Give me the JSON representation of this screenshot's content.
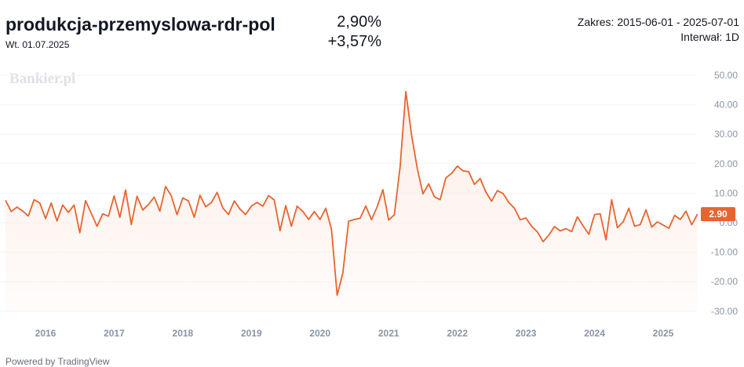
{
  "header": {
    "title": "produkcja-przemyslowa-rdr-pol",
    "date": "Wt. 01.07.2025",
    "value": "2,90%",
    "change": "+3,57%",
    "range": "Zakres: 2015-06-01 - 2025-07-01",
    "interval": "Interwał: 1D"
  },
  "watermark": "Bankier.pl",
  "footer": "Powered by TradingView",
  "colors": {
    "line": "#e8642f",
    "fill": "#fdebe3",
    "axis_text": "#8a93a6",
    "grid": "#f0f3fa",
    "badge": "#e8642f"
  },
  "chart_data": {
    "type": "area",
    "title": "",
    "xlabel": "",
    "ylabel": "",
    "ylim": [
      -33,
      52
    ],
    "xlim": [
      "2015-06-01",
      "2025-07-01"
    ],
    "y_ticks": [
      "50.00",
      "40.00",
      "30.00",
      "20.00",
      "10.00",
      "0.00",
      "-10.00",
      "-20.00",
      "-30.00"
    ],
    "y_tick_values": [
      50,
      40,
      30,
      20,
      10,
      0,
      -10,
      -20,
      -30
    ],
    "x_ticks": [
      "2016",
      "2017",
      "2018",
      "2019",
      "2020",
      "2021",
      "2022",
      "2023",
      "2024",
      "2025"
    ],
    "last_value_label": "2.90",
    "last_value": 2.9,
    "grid": true,
    "series": [
      {
        "x": [
          "2015-06",
          "2015-07",
          "2015-08",
          "2015-09",
          "2015-10",
          "2015-11",
          "2015-12",
          "2016-01",
          "2016-02",
          "2016-03",
          "2016-04",
          "2016-05",
          "2016-06",
          "2016-07",
          "2016-08",
          "2016-09",
          "2016-10",
          "2016-11",
          "2016-12",
          "2017-01",
          "2017-02",
          "2017-03",
          "2017-04",
          "2017-05",
          "2017-06",
          "2017-07",
          "2017-08",
          "2017-09",
          "2017-10",
          "2017-11",
          "2017-12",
          "2018-01",
          "2018-02",
          "2018-03",
          "2018-04",
          "2018-05",
          "2018-06",
          "2018-07",
          "2018-08",
          "2018-09",
          "2018-10",
          "2018-11",
          "2018-12",
          "2019-01",
          "2019-02",
          "2019-03",
          "2019-04",
          "2019-05",
          "2019-06",
          "2019-07",
          "2019-08",
          "2019-09",
          "2019-10",
          "2019-11",
          "2019-12",
          "2020-01",
          "2020-02",
          "2020-03",
          "2020-04",
          "2020-05",
          "2020-06",
          "2020-07",
          "2020-08",
          "2020-09",
          "2020-10",
          "2020-11",
          "2020-12",
          "2021-01",
          "2021-02",
          "2021-03",
          "2021-04",
          "2021-05",
          "2021-06",
          "2021-07",
          "2021-08",
          "2021-09",
          "2021-10",
          "2021-11",
          "2021-12",
          "2022-01",
          "2022-02",
          "2022-03",
          "2022-04",
          "2022-05",
          "2022-06",
          "2022-07",
          "2022-08",
          "2022-09",
          "2022-10",
          "2022-11",
          "2022-12",
          "2023-01",
          "2023-02",
          "2023-03",
          "2023-04",
          "2023-05",
          "2023-06",
          "2023-07",
          "2023-08",
          "2023-09",
          "2023-10",
          "2023-11",
          "2023-12",
          "2024-01",
          "2024-02",
          "2024-03",
          "2024-04",
          "2024-05",
          "2024-06",
          "2024-07",
          "2024-08",
          "2024-09",
          "2024-10",
          "2024-11",
          "2024-12",
          "2025-01",
          "2025-02",
          "2025-03",
          "2025-04",
          "2025-05",
          "2025-06",
          "2025-07"
        ],
        "values": [
          7.6,
          3.8,
          5.3,
          4.0,
          2.3,
          7.8,
          6.7,
          1.4,
          6.7,
          0.6,
          6.0,
          3.5,
          6.0,
          -3.4,
          7.5,
          3.2,
          -1.2,
          3.0,
          2.2,
          9.1,
          1.8,
          11.1,
          -0.6,
          9.0,
          4.3,
          6.2,
          8.7,
          3.9,
          12.3,
          9.1,
          2.7,
          8.4,
          7.4,
          1.8,
          9.3,
          5.4,
          6.8,
          10.3,
          5.0,
          2.8,
          7.4,
          4.6,
          2.8,
          5.6,
          6.9,
          5.6,
          9.2,
          7.7,
          -2.7,
          5.8,
          -1.2,
          5.6,
          3.8,
          1.1,
          3.8,
          1.1,
          4.9,
          -2.3,
          -24.6,
          -17.0,
          0.5,
          1.1,
          1.5,
          5.7,
          1.0,
          5.4,
          11.2,
          0.9,
          2.7,
          18.9,
          44.5,
          29.8,
          18.4,
          9.8,
          13.2,
          8.8,
          7.8,
          15.2,
          16.7,
          19.2,
          17.6,
          17.3,
          13.0,
          15.0,
          10.4,
          7.3,
          10.9,
          9.9,
          6.9,
          4.9,
          1.0,
          1.6,
          -1.2,
          -3.1,
          -6.4,
          -4.2,
          -1.3,
          -2.8,
          -2.0,
          -3.0,
          2.0,
          -1.1,
          -3.9,
          2.8,
          3.0,
          -5.8,
          7.8,
          -1.7,
          0.3,
          4.9,
          -1.2,
          -0.6,
          4.4,
          -1.5,
          0.3,
          -0.8,
          -1.9,
          2.5,
          1.1,
          3.9,
          -0.7,
          2.9
        ]
      }
    ]
  }
}
